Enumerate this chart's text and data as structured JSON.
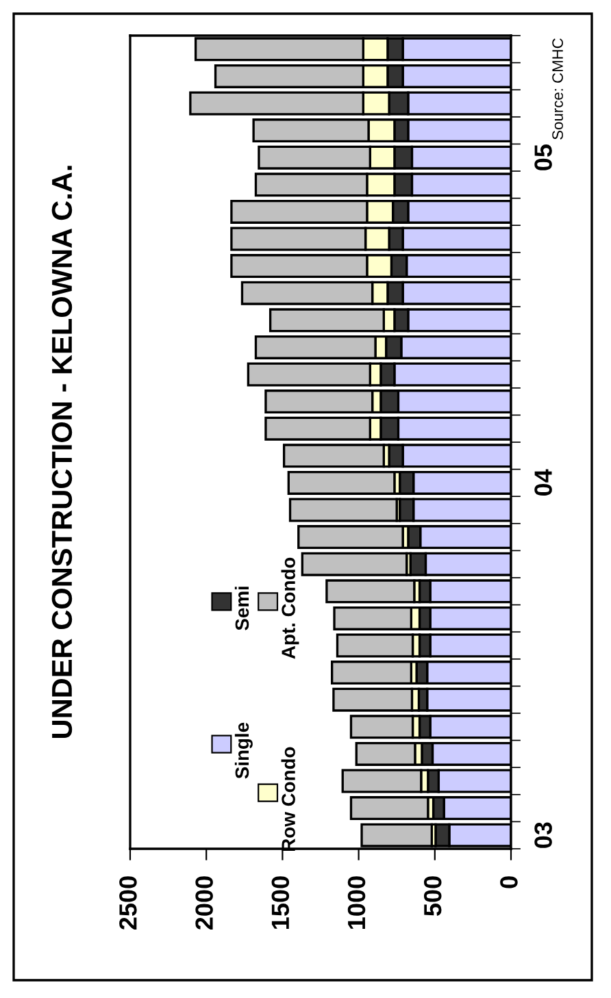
{
  "chart_data": {
    "type": "bar",
    "orientation": "horizontal",
    "stacked": true,
    "title": "UNDER CONSTRUCTION - KELOWNA C.A.",
    "categories": [
      null,
      null,
      null,
      null,
      "05",
      null,
      null,
      null,
      null,
      null,
      null,
      null,
      null,
      null,
      null,
      null,
      "04",
      null,
      null,
      null,
      null,
      null,
      null,
      null,
      null,
      null,
      null,
      null,
      null,
      "03"
    ],
    "series": [
      {
        "name": "Single",
        "color": "#ccccff",
        "values": [
          710,
          710,
          675,
          675,
          650,
          650,
          675,
          710,
          685,
          710,
          675,
          720,
          765,
          740,
          740,
          710,
          640,
          640,
          595,
          560,
          530,
          530,
          530,
          550,
          550,
          530,
          515,
          475,
          440,
          405
        ]
      },
      {
        "name": "Semi",
        "color": "#333333",
        "values": [
          100,
          100,
          125,
          90,
          115,
          115,
          100,
          90,
          100,
          100,
          90,
          100,
          90,
          115,
          115,
          90,
          90,
          90,
          80,
          100,
          70,
          70,
          70,
          70,
          55,
          70,
          70,
          70,
          70,
          90
        ]
      },
      {
        "name": "Row Condo",
        "color": "#ffffcc",
        "values": [
          160,
          160,
          170,
          170,
          160,
          180,
          170,
          155,
          160,
          100,
          70,
          70,
          70,
          55,
          70,
          35,
          35,
          20,
          35,
          25,
          35,
          55,
          45,
          35,
          45,
          45,
          45,
          45,
          35,
          25
        ]
      },
      {
        "name": "Apt. Condo",
        "color": "#c0c0c0",
        "values": [
          1100,
          970,
          1135,
          755,
          730,
          730,
          890,
          880,
          890,
          855,
          745,
          785,
          800,
          700,
          685,
          655,
          695,
          700,
          685,
          685,
          575,
          505,
          495,
          520,
          515,
          405,
          385,
          515,
          505,
          460
        ]
      }
    ],
    "xlim": [
      2500,
      0
    ],
    "xticks": [
      2500,
      2000,
      1500,
      1000,
      500,
      0
    ],
    "grid": false,
    "legend": "bottom left",
    "annotations": [
      "Source: CMHC"
    ]
  }
}
